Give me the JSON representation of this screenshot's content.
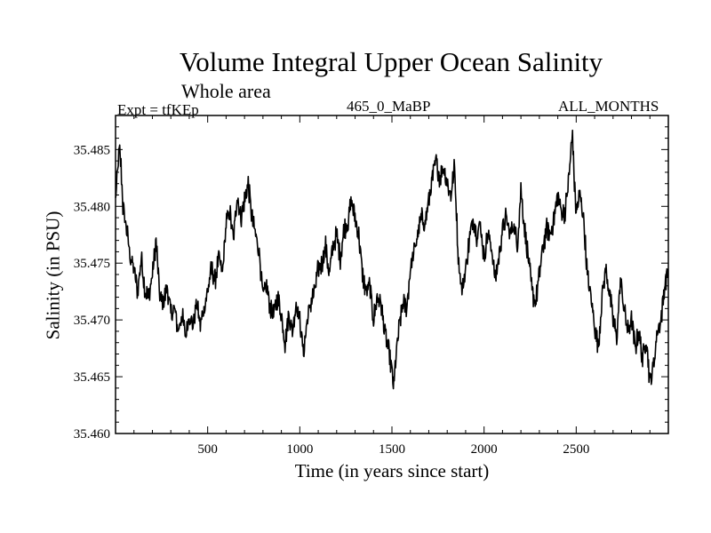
{
  "chart_data": {
    "type": "line",
    "title": "Volume Integral Upper Ocean Salinity",
    "subtitle": "Whole area",
    "left_label": "Expt = tfKEp",
    "center_label": "465_0_MaBP",
    "right_label": "ALL_MONTHS",
    "xlabel": "Time (in years since start)",
    "ylabel": "Salinity (in PSU)",
    "xlim": [
      0,
      3000
    ],
    "ylim": [
      35.46,
      35.488
    ],
    "x_ticks": [
      500,
      1000,
      1500,
      2000,
      2500
    ],
    "y_ticks": [
      "35.460",
      "35.465",
      "35.470",
      "35.475",
      "35.480",
      "35.485"
    ],
    "grid": false,
    "series": [
      {
        "color": "#000000",
        "x": [
          0,
          20,
          30,
          40,
          60,
          80,
          100,
          120,
          140,
          160,
          180,
          200,
          220,
          240,
          260,
          280,
          300,
          320,
          340,
          360,
          380,
          400,
          420,
          440,
          460,
          480,
          500,
          520,
          540,
          560,
          580,
          600,
          620,
          640,
          660,
          680,
          700,
          720,
          740,
          760,
          780,
          800,
          820,
          840,
          860,
          880,
          900,
          920,
          940,
          960,
          980,
          1000,
          1020,
          1040,
          1060,
          1080,
          1100,
          1120,
          1140,
          1160,
          1180,
          1200,
          1220,
          1240,
          1260,
          1280,
          1300,
          1320,
          1340,
          1360,
          1380,
          1400,
          1420,
          1440,
          1460,
          1480,
          1500,
          1510,
          1520,
          1540,
          1560,
          1580,
          1600,
          1620,
          1640,
          1660,
          1680,
          1700,
          1720,
          1740,
          1760,
          1780,
          1800,
          1820,
          1840,
          1860,
          1880,
          1900,
          1920,
          1940,
          1960,
          1980,
          2000,
          2020,
          2040,
          2060,
          2080,
          2100,
          2120,
          2140,
          2160,
          2180,
          2200,
          2220,
          2240,
          2260,
          2280,
          2300,
          2320,
          2340,
          2360,
          2380,
          2400,
          2420,
          2440,
          2460,
          2480,
          2490,
          2500,
          2520,
          2540,
          2560,
          2580,
          2600,
          2620,
          2640,
          2660,
          2680,
          2700,
          2720,
          2740,
          2760,
          2780,
          2800,
          2820,
          2840,
          2860,
          2880,
          2900,
          2920,
          2940,
          2960,
          2980,
          3000
        ],
        "y": [
          35.4805,
          35.485,
          35.4835,
          35.48,
          35.478,
          35.4755,
          35.4745,
          35.4725,
          35.4755,
          35.4725,
          35.472,
          35.474,
          35.477,
          35.472,
          35.4715,
          35.473,
          35.4705,
          35.471,
          35.469,
          35.4705,
          35.4685,
          35.4705,
          35.4695,
          35.4715,
          35.4695,
          35.471,
          35.4725,
          35.4745,
          35.4735,
          35.4755,
          35.474,
          35.4785,
          35.4795,
          35.477,
          35.481,
          35.479,
          35.4805,
          35.482,
          35.479,
          35.4775,
          35.476,
          35.472,
          35.473,
          35.471,
          35.4705,
          35.472,
          35.4705,
          35.468,
          35.4705,
          35.469,
          35.4715,
          35.47,
          35.467,
          35.47,
          35.4715,
          35.4725,
          35.4745,
          35.475,
          35.4765,
          35.474,
          35.4765,
          35.4775,
          35.4755,
          35.478,
          35.4785,
          35.4805,
          35.479,
          35.4775,
          35.474,
          35.4725,
          35.473,
          35.47,
          35.472,
          35.4715,
          35.469,
          35.4675,
          35.4655,
          35.464,
          35.4665,
          35.4695,
          35.4715,
          35.471,
          35.4745,
          35.476,
          35.4775,
          35.479,
          35.4785,
          35.4805,
          35.4825,
          35.484,
          35.4825,
          35.4835,
          35.482,
          35.481,
          35.4835,
          35.4755,
          35.4725,
          35.4745,
          35.477,
          35.479,
          35.4775,
          35.4785,
          35.4755,
          35.4775,
          35.4765,
          35.4735,
          35.4755,
          35.478,
          35.479,
          35.4775,
          35.4785,
          35.4765,
          35.4815,
          35.478,
          35.4755,
          35.4725,
          35.4715,
          35.474,
          35.4765,
          35.478,
          35.4775,
          35.479,
          35.481,
          35.4795,
          35.4795,
          35.4825,
          35.4865,
          35.482,
          35.4795,
          35.481,
          35.479,
          35.474,
          35.472,
          35.4695,
          35.4675,
          35.472,
          35.4745,
          35.4725,
          35.47,
          35.4685,
          35.4735,
          35.471,
          35.469,
          35.47,
          35.4675,
          35.469,
          35.4665,
          35.4685,
          35.4645,
          35.466,
          35.469,
          35.47,
          35.473,
          35.4745
        ]
      }
    ]
  }
}
